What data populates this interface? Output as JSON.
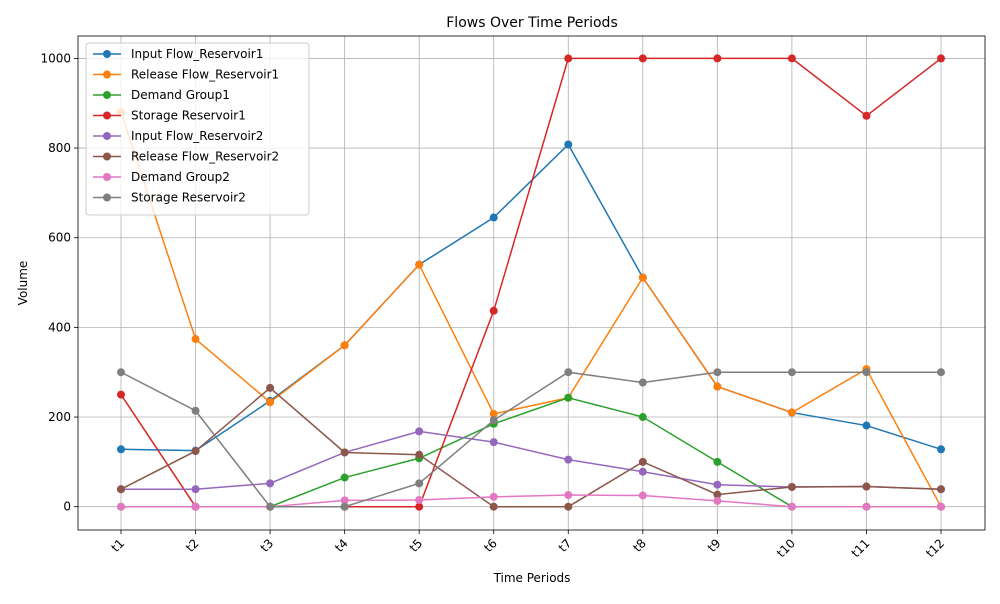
{
  "chart_data": {
    "type": "line",
    "title": "Flows Over Time Periods",
    "xlabel": "Time Periods",
    "ylabel": "Volume",
    "categories": [
      "t1",
      "t2",
      "t3",
      "t4",
      "t5",
      "t6",
      "t7",
      "t8",
      "t9",
      "t10",
      "t11",
      "t12"
    ],
    "ylim": [
      -52,
      1050
    ],
    "yticks": [
      0,
      200,
      400,
      600,
      800,
      1000
    ],
    "grid": true,
    "legend_position": "top-left",
    "series": [
      {
        "name": "Input Flow_Reservoir1",
        "color": "#1f77b4",
        "values": [
          128,
          125,
          236,
          360,
          540,
          645,
          808,
          511,
          268,
          210,
          181,
          128
        ]
      },
      {
        "name": "Release Flow_Reservoir1",
        "color": "#ff7f0e",
        "values": [
          880,
          374,
          233,
          360,
          540,
          207,
          243,
          511,
          268,
          210,
          307,
          0
        ]
      },
      {
        "name": "Demand Group1",
        "color": "#2ca02c",
        "values": [
          0,
          0,
          0,
          65,
          108,
          185,
          243,
          200,
          100,
          0,
          0,
          0
        ]
      },
      {
        "name": "Storage Reservoir1",
        "color": "#d62728",
        "values": [
          250,
          0,
          0,
          0,
          0,
          437,
          1000,
          1000,
          1000,
          1000,
          872,
          1000
        ]
      },
      {
        "name": "Input Flow_Reservoir2",
        "color": "#9467bd",
        "values": [
          39,
          39,
          52,
          121,
          168,
          144,
          105,
          78,
          49,
          44,
          45,
          39
        ]
      },
      {
        "name": "Release Flow_Reservoir2",
        "color": "#8c564b",
        "values": [
          39,
          124,
          265,
          121,
          116,
          0,
          0,
          100,
          27,
          44,
          45,
          39
        ]
      },
      {
        "name": "Demand Group2",
        "color": "#e377c2",
        "values": [
          0,
          0,
          0,
          14,
          15,
          22,
          26,
          25,
          13,
          0,
          0,
          0
        ]
      },
      {
        "name": "Storage Reservoir2",
        "color": "#7f7f7f",
        "values": [
          300,
          214,
          0,
          0,
          52,
          193,
          300,
          277,
          300,
          300,
          300,
          300
        ]
      }
    ]
  }
}
